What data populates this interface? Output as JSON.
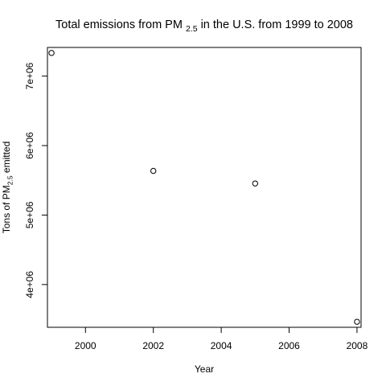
{
  "chart_data": {
    "type": "scatter",
    "title": {
      "prefix": "Total emissions from PM",
      "subscript": "2.5",
      "suffix": " in the U.S. from 1999 to 2008"
    },
    "xlabel": "Year",
    "ylabel": {
      "prefix": "Tons of PM",
      "subscript": "2.5",
      "suffix": "  emitted"
    },
    "x": [
      1999,
      2002,
      2005,
      2008
    ],
    "y": [
      7332967,
      5635780,
      5454703,
      3464206
    ],
    "xlim": [
      1998.88,
      2008.12
    ],
    "ylim": [
      3384816,
      7412357
    ],
    "xticks": [
      2000,
      2002,
      2004,
      2006,
      2008
    ],
    "xtick_labels": [
      "2000",
      "2002",
      "2004",
      "2006",
      "2008"
    ],
    "yticks": [
      4000000,
      5000000,
      6000000,
      7000000
    ],
    "ytick_labels": [
      "4e+06",
      "5e+06",
      "6e+06",
      "7e+06"
    ],
    "grid": false,
    "legend": "none",
    "marker": "open-circle",
    "color": "#000000"
  }
}
